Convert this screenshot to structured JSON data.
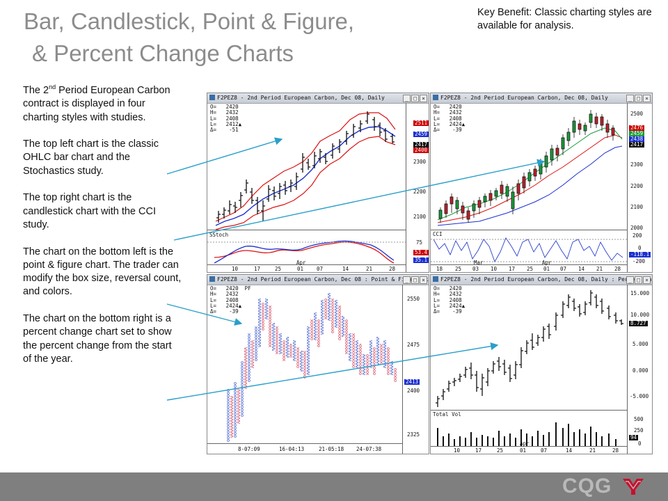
{
  "slide": {
    "title_line1": "Bar, Candlestick, Point & Figure,",
    "title_line2": "& Percent Change Charts",
    "key_benefit": "Key Benefit: Classic charting styles are available for analysis.",
    "para1_pre": "The 2",
    "para1_sup": "nd",
    "para1_post": " Period European Carbon contract is displayed in four charting styles with studies.",
    "para2": "The top left chart is the classic OHLC bar chart and the Stochastics study.",
    "para3": "The top right chart is the candlestick chart with the CCI study.",
    "para4": "The chart on the bottom left is the point & figure chart. The trader can modify the box size, reversal count, and colors.",
    "para5": "The chart on the bottom right is a percent change chart set to show the percent change from the start of the year.",
    "logo_text": "CQG"
  },
  "charts": {
    "top_left": {
      "title": "F2PEZ8 - 2nd Period European Carbon, Dec 08, Daily",
      "ohlc": "O=   2420\nH=   2432\nL=   2408\nL=   2412▲\nΔ=    -51",
      "y_ticks": [
        "2300",
        "2200",
        "2100"
      ],
      "price_tags": [
        "2511",
        "2459",
        "2417",
        "2400"
      ],
      "study_label": "SStoch",
      "study_ticks": [
        "75"
      ],
      "study_tags": [
        "53.4",
        "35.1"
      ],
      "month_label": "Apr",
      "x_ticks": [
        "10",
        "17",
        "25",
        "01",
        "07",
        "14",
        "21",
        "28"
      ]
    },
    "top_right": {
      "title": "F2PEZ8 - 2nd Period European Carbon, Dec 08, Daily",
      "ohlc": "O=   2420\nH=   2432\nL=   2408\nL=   2424▲\nΔ=    -39",
      "y_ticks": [
        "2500",
        "2400",
        "2300",
        "2200",
        "2100",
        "2000"
      ],
      "price_tags": [
        "2476",
        "2459",
        "2438",
        "2417"
      ],
      "study_label": "CCI",
      "study_ticks": [
        "200",
        "0",
        "-200"
      ],
      "study_tag": "-118.1",
      "month_labels": [
        "Mar",
        "Apr"
      ],
      "x_ticks": [
        "18",
        "25",
        "03",
        "10",
        "17",
        "25",
        "01",
        "07",
        "14",
        "21",
        "28"
      ]
    },
    "bottom_left": {
      "title": "F2PEZ8 - 2nd Period European Carbon, Dec 08 : Point & Figure 3x3,Ticks",
      "ohlc": "O=   2420  PF\nH=   2432\nL=   2408\nL=   2424▲\nΔ=    -39",
      "y_ticks": [
        "2550",
        "2475",
        "2400",
        "2325"
      ],
      "price_tag": "2413",
      "x_ticks": [
        "8-07:09",
        "16-04:13",
        "21-05:18",
        "24-07:38"
      ]
    },
    "bottom_right": {
      "title": "F2PEZ8 - 2nd Period European Carbon, Dec 08, Daily : Percent Bar",
      "ohlc": "O=   2420\nH=   2432\nL=   2408\nL=   2424▲\nΔ=    -39",
      "y_ticks": [
        "15.000",
        "10.000",
        "5.000",
        "0.000",
        "-5.000"
      ],
      "price_tag": "8.727",
      "study_label": "Total Vol",
      "study_ticks": [
        "500",
        "250",
        "0"
      ],
      "study_tag": "94",
      "month_label": "Apr",
      "x_ticks": [
        "10",
        "17",
        "25",
        "01",
        "07",
        "14",
        "21",
        "28"
      ]
    }
  },
  "colors": {
    "title_gray": "#8c8c8c",
    "footer_gray": "#7f7f7f",
    "connector_blue": "#2a9fc9",
    "band_red": "#dd1111",
    "avg_blue": "#1a2fd0",
    "candle_green": "#1a9a3a",
    "candle_red": "#c0202a",
    "pf_blue": "#7b8fe0",
    "pf_red": "#e07b8a",
    "logo_red": "#c8102e"
  }
}
